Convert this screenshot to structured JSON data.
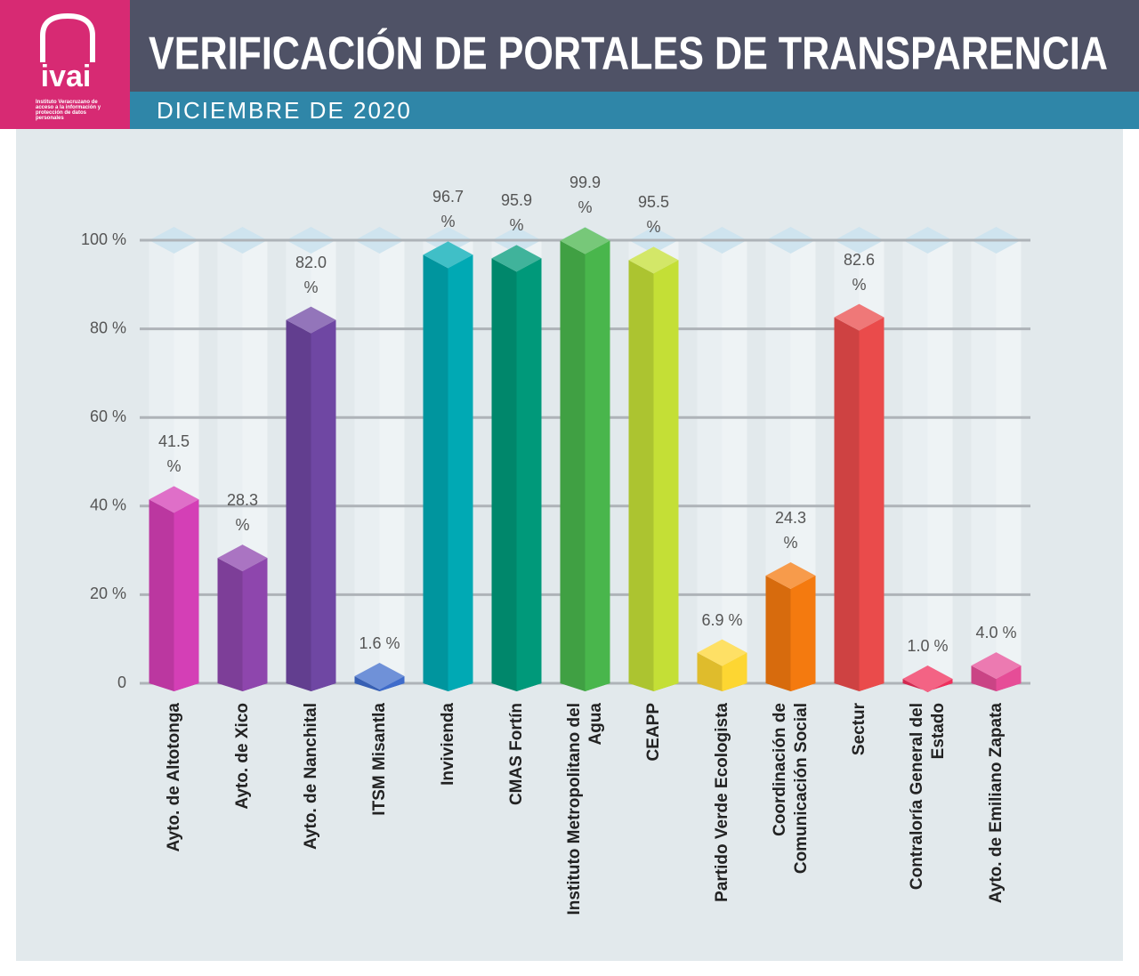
{
  "header": {
    "logo": "ivai",
    "logo_caption": "Instituto Veracruzano de acceso a la información y protección de datos personales"
  },
  "chart_data": {
    "type": "bar",
    "title": "VERIFICACIÓN DE PORTALES DE TRANSPARENCIA",
    "subtitle": "DICIEMBRE DE 2020",
    "categories": [
      "Ayto. de Altotonga",
      "Ayto. de Xico",
      "Ayto. de Nanchital",
      "ITSM Misantla",
      "Invivienda",
      "CMAS Fortín",
      "Instituto Metropolitano del Agua",
      "CEAPP",
      "Partido Verde Ecologista",
      "Coordinación de Comunicación Social",
      "Sectur",
      "Contraloría General del Estado",
      "Ayto. de Emiliano Zapata"
    ],
    "values": [
      41.5,
      28.3,
      82.0,
      1.6,
      96.7,
      95.9,
      99.9,
      95.5,
      6.9,
      24.3,
      82.6,
      1.0,
      4.0
    ],
    "value_labels": [
      "41.5 %",
      "28.3 %",
      "82.0 %",
      "1.6 %",
      "96.7 %",
      "95.9 %",
      "99.9 %",
      "95.5 %",
      "6.9 %",
      "24.3 %",
      "82.6 %",
      "1.0 %",
      "4.0 %"
    ],
    "colors": [
      "#d43fb6",
      "#8e46ad",
      "#6f47a3",
      "#3f6ccb",
      "#00a9b4",
      "#00997a",
      "#49b64c",
      "#c4df36",
      "#fdd632",
      "#f47a0f",
      "#ea4b4b",
      "#ef2f5b",
      "#e64d97"
    ],
    "ylim": [
      0,
      100
    ],
    "yticks": [
      0,
      {
        "value": 20,
        "label": "20 %"
      },
      {
        "value": 40,
        "label": "40 %"
      },
      {
        "value": 60,
        "label": "60 %"
      },
      {
        "value": 80,
        "label": "80 %"
      },
      {
        "value": 100,
        "label": "100 %"
      }
    ],
    "grid": true
  }
}
